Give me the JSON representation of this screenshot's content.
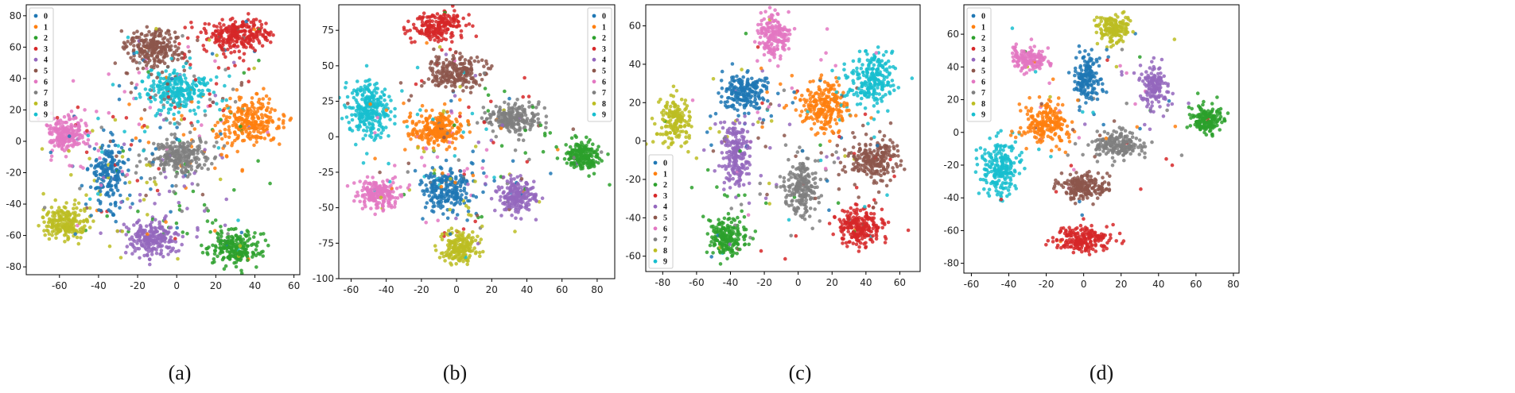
{
  "colors": [
    "#1f77b4",
    "#ff7f0e",
    "#2ca02c",
    "#d62728",
    "#9467bd",
    "#8c564b",
    "#e377c2",
    "#7f7f7f",
    "#bcbd22",
    "#17becf"
  ],
  "chart_data": [
    {
      "type": "scatter",
      "caption": "(a)",
      "legend": [
        "0",
        "1",
        "2",
        "3",
        "4",
        "5",
        "6",
        "7",
        "8",
        "9"
      ],
      "legend_position": "top-left",
      "xlim": [
        -77,
        63
      ],
      "ylim": [
        -85,
        87
      ],
      "xticks": [
        -60,
        -40,
        -20,
        0,
        20,
        40,
        60
      ],
      "yticks": [
        -80,
        -60,
        -40,
        -20,
        0,
        20,
        40,
        60,
        80
      ],
      "clusters": [
        {
          "label": "0",
          "cx": -35,
          "cy": -20,
          "rx": 8,
          "ry": 18,
          "n": 170
        },
        {
          "label": "1",
          "cx": 38,
          "cy": 12,
          "rx": 14,
          "ry": 13,
          "n": 230
        },
        {
          "label": "2",
          "cx": 30,
          "cy": -68,
          "rx": 12,
          "ry": 10,
          "n": 200
        },
        {
          "label": "3",
          "cx": 32,
          "cy": 68,
          "rx": 15,
          "ry": 9,
          "n": 230
        },
        {
          "label": "4",
          "cx": -12,
          "cy": -62,
          "rx": 11,
          "ry": 10,
          "n": 200
        },
        {
          "label": "5",
          "cx": -12,
          "cy": 60,
          "rx": 13,
          "ry": 11,
          "n": 220
        },
        {
          "label": "6",
          "cx": -56,
          "cy": 5,
          "rx": 10,
          "ry": 10,
          "n": 190
        },
        {
          "label": "7",
          "cx": 2,
          "cy": -10,
          "rx": 13,
          "ry": 9,
          "n": 220
        },
        {
          "label": "8",
          "cx": -58,
          "cy": -52,
          "rx": 10,
          "ry": 9,
          "n": 190
        },
        {
          "label": "9",
          "cx": 0,
          "cy": 33,
          "rx": 16,
          "ry": 11,
          "n": 240
        }
      ],
      "noise": 520
    },
    {
      "type": "scatter",
      "caption": "(b)",
      "legend": [
        "0",
        "1",
        "2",
        "3",
        "4",
        "5",
        "6",
        "7",
        "8",
        "9"
      ],
      "legend_position": "top-right",
      "xlim": [
        -67,
        90
      ],
      "ylim": [
        -100,
        93
      ],
      "xticks": [
        -60,
        -40,
        -20,
        0,
        20,
        40,
        60,
        80
      ],
      "yticks": [
        -100,
        -75,
        -50,
        -25,
        0,
        25,
        50,
        75
      ],
      "clusters": [
        {
          "label": "0",
          "cx": -5,
          "cy": -38,
          "rx": 12,
          "ry": 14,
          "n": 200
        },
        {
          "label": "1",
          "cx": -12,
          "cy": 5,
          "rx": 13,
          "ry": 11,
          "n": 220
        },
        {
          "label": "2",
          "cx": 72,
          "cy": -13,
          "rx": 9,
          "ry": 9,
          "n": 190
        },
        {
          "label": "3",
          "cx": -10,
          "cy": 78,
          "rx": 13,
          "ry": 9,
          "n": 200
        },
        {
          "label": "4",
          "cx": 35,
          "cy": -42,
          "rx": 10,
          "ry": 11,
          "n": 190
        },
        {
          "label": "5",
          "cx": 0,
          "cy": 45,
          "rx": 14,
          "ry": 10,
          "n": 220
        },
        {
          "label": "6",
          "cx": -44,
          "cy": -40,
          "rx": 10,
          "ry": 9,
          "n": 190
        },
        {
          "label": "7",
          "cx": 32,
          "cy": 13,
          "rx": 13,
          "ry": 9,
          "n": 210
        },
        {
          "label": "8",
          "cx": 2,
          "cy": -78,
          "rx": 9,
          "ry": 10,
          "n": 180
        },
        {
          "label": "9",
          "cx": -50,
          "cy": 20,
          "rx": 9,
          "ry": 19,
          "n": 240
        }
      ],
      "noise": 300
    },
    {
      "type": "scatter",
      "caption": "(c)",
      "legend": [
        "0",
        "1",
        "2",
        "3",
        "4",
        "5",
        "6",
        "7",
        "8",
        "9"
      ],
      "legend_position": "lower-left",
      "xlim": [
        -90,
        72
      ],
      "ylim": [
        -68,
        71
      ],
      "xticks": [
        -80,
        -60,
        -40,
        -20,
        0,
        20,
        40,
        60
      ],
      "yticks": [
        -60,
        -40,
        -20,
        0,
        20,
        40,
        60
      ],
      "clusters": [
        {
          "label": "0",
          "cx": -33,
          "cy": 25,
          "rx": 13,
          "ry": 9,
          "n": 190
        },
        {
          "label": "1",
          "cx": 15,
          "cy": 18,
          "rx": 13,
          "ry": 12,
          "n": 220
        },
        {
          "label": "2",
          "cx": -42,
          "cy": -50,
          "rx": 10,
          "ry": 8,
          "n": 180
        },
        {
          "label": "3",
          "cx": 37,
          "cy": -45,
          "rx": 13,
          "ry": 9,
          "n": 220
        },
        {
          "label": "4",
          "cx": -37,
          "cy": -8,
          "rx": 8,
          "ry": 16,
          "n": 190
        },
        {
          "label": "5",
          "cx": 45,
          "cy": -10,
          "rx": 14,
          "ry": 9,
          "n": 210
        },
        {
          "label": "6",
          "cx": -14,
          "cy": 55,
          "rx": 8,
          "ry": 10,
          "n": 170
        },
        {
          "label": "7",
          "cx": 2,
          "cy": -25,
          "rx": 9,
          "ry": 14,
          "n": 200
        },
        {
          "label": "8",
          "cx": -73,
          "cy": 10,
          "rx": 8,
          "ry": 11,
          "n": 160
        },
        {
          "label": "9",
          "cx": 43,
          "cy": 32,
          "rx": 14,
          "ry": 13,
          "n": 230
        }
      ],
      "noise": 220
    },
    {
      "type": "scatter",
      "caption": "(d)",
      "legend": [
        "0",
        "1",
        "2",
        "3",
        "4",
        "5",
        "6",
        "7",
        "8",
        "9"
      ],
      "legend_position": "top-left",
      "xlim": [
        -64,
        83
      ],
      "ylim": [
        -86,
        78
      ],
      "xticks": [
        -60,
        -40,
        -20,
        0,
        20,
        40,
        60,
        80
      ],
      "yticks": [
        -80,
        -60,
        -40,
        -20,
        0,
        20,
        40,
        60
      ],
      "clusters": [
        {
          "label": "0",
          "cx": 2,
          "cy": 32,
          "rx": 7,
          "ry": 13,
          "n": 160
        },
        {
          "label": "1",
          "cx": -20,
          "cy": 5,
          "rx": 11,
          "ry": 10,
          "n": 200
        },
        {
          "label": "2",
          "cx": 66,
          "cy": 8,
          "rx": 8,
          "ry": 8,
          "n": 160
        },
        {
          "label": "3",
          "cx": -2,
          "cy": -66,
          "rx": 14,
          "ry": 7,
          "n": 200
        },
        {
          "label": "4",
          "cx": 38,
          "cy": 28,
          "rx": 7,
          "ry": 11,
          "n": 150
        },
        {
          "label": "5",
          "cx": 0,
          "cy": -33,
          "rx": 12,
          "ry": 8,
          "n": 190
        },
        {
          "label": "6",
          "cx": -30,
          "cy": 45,
          "rx": 9,
          "ry": 7,
          "n": 150
        },
        {
          "label": "7",
          "cx": 18,
          "cy": -8,
          "rx": 14,
          "ry": 7,
          "n": 190
        },
        {
          "label": "8",
          "cx": 16,
          "cy": 63,
          "rx": 8,
          "ry": 9,
          "n": 160
        },
        {
          "label": "9",
          "cx": -45,
          "cy": -22,
          "rx": 9,
          "ry": 16,
          "n": 210
        }
      ],
      "noise": 100
    }
  ]
}
